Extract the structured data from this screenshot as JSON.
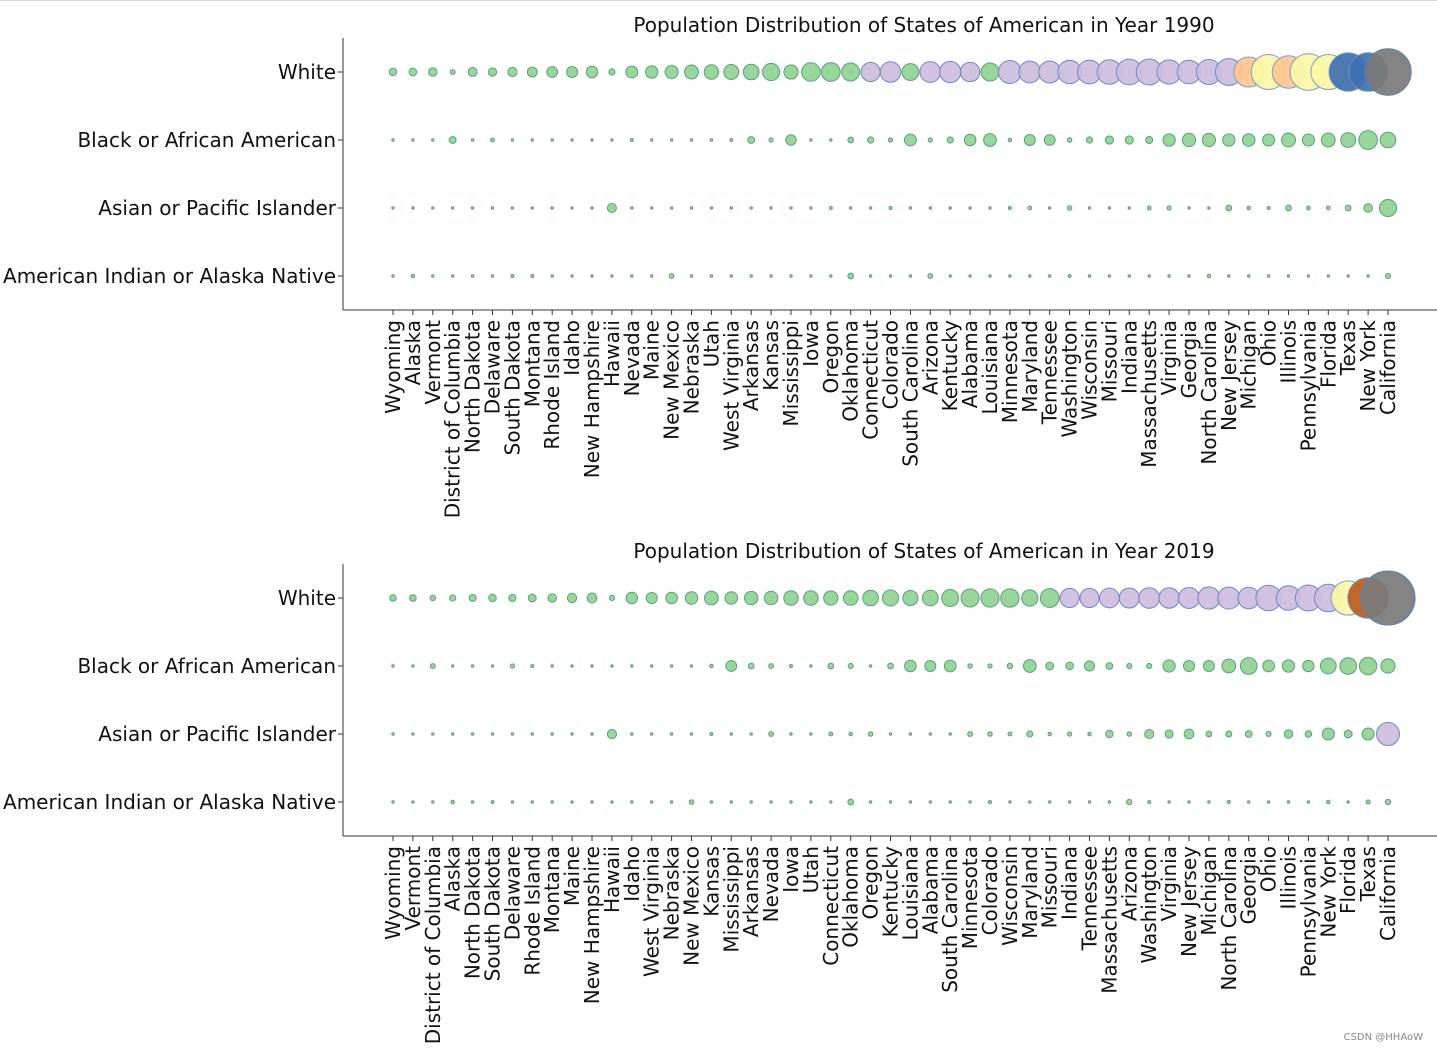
{
  "watermark": "CSDN @HHAoW",
  "chart_data": [
    {
      "type": "scatter",
      "title": "Population Distribution of States of American in Year 1990",
      "y_categories": [
        "White",
        "Black or African American",
        "Asian or Pacific Islander",
        "American Indian or Alaska Native"
      ],
      "x_categories": [
        "Wyoming",
        "Alaska",
        "Vermont",
        "District of Columbia",
        "North Dakota",
        "Delaware",
        "South Dakota",
        "Montana",
        "Rhode Island",
        "Idaho",
        "New Hampshire",
        "Hawaii",
        "Nevada",
        "Maine",
        "New Mexico",
        "Nebraska",
        "Utah",
        "West Virginia",
        "Arkansas",
        "Kansas",
        "Mississippi",
        "Iowa",
        "Oregon",
        "Oklahoma",
        "Connecticut",
        "Colorado",
        "South Carolina",
        "Arizona",
        "Kentucky",
        "Alabama",
        "Louisiana",
        "Minnesota",
        "Maryland",
        "Tennessee",
        "Washington",
        "Wisconsin",
        "Missouri",
        "Indiana",
        "Massachusetts",
        "Virginia",
        "Georgia",
        "North Carolina",
        "New Jersey",
        "Michigan",
        "Ohio",
        "Illinois",
        "Pennsylvania",
        "Florida",
        "Texas",
        "New York",
        "California"
      ],
      "bubble_size_units": "relative area (max = 1.0)",
      "series": [
        {
          "values": [
            0.019,
            0.02,
            0.024,
            0.008,
            0.027,
            0.023,
            0.029,
            0.033,
            0.04,
            0.041,
            0.046,
            0.013,
            0.048,
            0.052,
            0.058,
            0.066,
            0.071,
            0.076,
            0.083,
            0.101,
            0.068,
            0.117,
            0.121,
            0.11,
            0.125,
            0.144,
            0.097,
            0.147,
            0.153,
            0.128,
            0.11,
            0.18,
            0.162,
            0.165,
            0.188,
            0.194,
            0.205,
            0.225,
            0.229,
            0.2,
            0.189,
            0.213,
            0.245,
            0.308,
            0.416,
            0.363,
            0.46,
            0.419,
            0.501,
            0.508,
            0.735
          ]
        },
        {
          "values": [
            0.0,
            0.001,
            0.0,
            0.016,
            0.0,
            0.005,
            0.0,
            0.0,
            0.002,
            0.0,
            0.0,
            0.001,
            0.003,
            0.0,
            0.001,
            0.002,
            0.0,
            0.003,
            0.016,
            0.006,
            0.037,
            0.002,
            0.002,
            0.011,
            0.013,
            0.006,
            0.048,
            0.006,
            0.013,
            0.046,
            0.056,
            0.004,
            0.041,
            0.04,
            0.007,
            0.013,
            0.023,
            0.023,
            0.017,
            0.052,
            0.06,
            0.059,
            0.052,
            0.054,
            0.05,
            0.067,
            0.05,
            0.065,
            0.075,
            0.119,
            0.083
          ]
        },
        {
          "values": [
            0.0,
            0.001,
            0.0,
            0.0,
            0.0,
            0.0,
            0.0,
            0.0,
            0.001,
            0.0,
            0.0,
            0.028,
            0.002,
            0.0,
            0.001,
            0.0,
            0.001,
            0.0,
            0.0,
            0.001,
            0.0,
            0.001,
            0.003,
            0.001,
            0.002,
            0.003,
            0.001,
            0.002,
            0.0,
            0.001,
            0.001,
            0.003,
            0.005,
            0.001,
            0.007,
            0.002,
            0.001,
            0.001,
            0.005,
            0.006,
            0.002,
            0.001,
            0.011,
            0.004,
            0.003,
            0.011,
            0.005,
            0.005,
            0.011,
            0.026,
            0.1
          ]
        },
        {
          "values": [
            0.001,
            0.004,
            0.0,
            0.0,
            0.001,
            0.0,
            0.003,
            0.003,
            0.0,
            0.001,
            0.0,
            0.0,
            0.001,
            0.0,
            0.008,
            0.001,
            0.001,
            0.0,
            0.0,
            0.001,
            0.0,
            0.0,
            0.002,
            0.011,
            0.0,
            0.001,
            0.0,
            0.008,
            0.0,
            0.0,
            0.001,
            0.002,
            0.0,
            0.0,
            0.003,
            0.002,
            0.0,
            0.0,
            0.0,
            0.001,
            0.0,
            0.004,
            0.0,
            0.002,
            0.0,
            0.0,
            0.0,
            0.001,
            0.002,
            0.002,
            0.009
          ]
        }
      ]
    },
    {
      "type": "scatter",
      "title": "Population Distribution of States of American in Year 2019",
      "y_categories": [
        "White",
        "Black or African American",
        "Asian or Pacific Islander",
        "American Indian or Alaska Native"
      ],
      "x_categories": [
        "Wyoming",
        "Vermont",
        "District of Columbia",
        "Alaska",
        "North Dakota",
        "South Dakota",
        "Delaware",
        "Rhode Island",
        "Montana",
        "Maine",
        "New Hampshire",
        "Hawaii",
        "Idaho",
        "West Virginia",
        "Nebraska",
        "New Mexico",
        "Kansas",
        "Mississippi",
        "Arkansas",
        "Nevada",
        "Iowa",
        "Utah",
        "Connecticut",
        "Oklahoma",
        "Oregon",
        "Kentucky",
        "Louisiana",
        "Alabama",
        "South Carolina",
        "Minnesota",
        "Colorado",
        "Wisconsin",
        "Maryland",
        "Missouri",
        "Indiana",
        "Tennessee",
        "Massachusetts",
        "Arizona",
        "Washington",
        "Virginia",
        "New Jersey",
        "Michigan",
        "North Carolina",
        "Georgia",
        "Ohio",
        "Illinois",
        "Pennsylvania",
        "New York",
        "Florida",
        "Texas",
        "California"
      ],
      "bubble_size_units": "relative area (max = 1.0)",
      "series": [
        {
          "values": [
            0.014,
            0.015,
            0.01,
            0.013,
            0.017,
            0.019,
            0.017,
            0.021,
            0.025,
            0.03,
            0.032,
            0.009,
            0.045,
            0.042,
            0.046,
            0.053,
            0.065,
            0.054,
            0.061,
            0.063,
            0.071,
            0.072,
            0.069,
            0.073,
            0.083,
            0.088,
            0.078,
            0.084,
            0.099,
            0.11,
            0.113,
            0.115,
            0.09,
            0.12,
            0.125,
            0.125,
            0.132,
            0.138,
            0.145,
            0.142,
            0.15,
            0.168,
            0.167,
            0.159,
            0.22,
            0.205,
            0.23,
            0.26,
            0.4,
            0.56,
            1.0
          ]
        },
        {
          "values": [
            0.0,
            0.0,
            0.008,
            0.001,
            0.001,
            0.001,
            0.006,
            0.003,
            0.0,
            0.0,
            0.0,
            0.001,
            0.0,
            0.002,
            0.002,
            0.001,
            0.004,
            0.04,
            0.011,
            0.008,
            0.003,
            0.001,
            0.011,
            0.009,
            0.002,
            0.011,
            0.046,
            0.041,
            0.047,
            0.007,
            0.006,
            0.01,
            0.055,
            0.021,
            0.02,
            0.034,
            0.016,
            0.009,
            0.009,
            0.051,
            0.042,
            0.041,
            0.064,
            0.095,
            0.047,
            0.052,
            0.044,
            0.084,
            0.094,
            0.103,
            0.069
          ]
        },
        {
          "values": [
            0.0,
            0.0,
            0.001,
            0.001,
            0.0,
            0.0,
            0.001,
            0.001,
            0.0,
            0.0,
            0.001,
            0.029,
            0.001,
            0.0,
            0.001,
            0.001,
            0.003,
            0.0,
            0.001,
            0.008,
            0.002,
            0.002,
            0.005,
            0.004,
            0.007,
            0.002,
            0.002,
            0.002,
            0.002,
            0.008,
            0.007,
            0.005,
            0.013,
            0.004,
            0.006,
            0.004,
            0.019,
            0.007,
            0.028,
            0.022,
            0.032,
            0.011,
            0.012,
            0.016,
            0.009,
            0.025,
            0.014,
            0.05,
            0.021,
            0.05,
            0.18
          ]
        },
        {
          "values": [
            0.001,
            0.0,
            0.0,
            0.004,
            0.002,
            0.003,
            0.0,
            0.0,
            0.002,
            0.0,
            0.0,
            0.0,
            0.001,
            0.0,
            0.001,
            0.007,
            0.001,
            0.001,
            0.001,
            0.001,
            0.0,
            0.001,
            0.0,
            0.011,
            0.001,
            0.0,
            0.001,
            0.001,
            0.001,
            0.002,
            0.003,
            0.002,
            0.001,
            0.001,
            0.0,
            0.001,
            0.001,
            0.01,
            0.003,
            0.001,
            0.001,
            0.001,
            0.003,
            0.001,
            0.001,
            0.001,
            0.0,
            0.004,
            0.002,
            0.006,
            0.01
          ]
        }
      ]
    }
  ]
}
